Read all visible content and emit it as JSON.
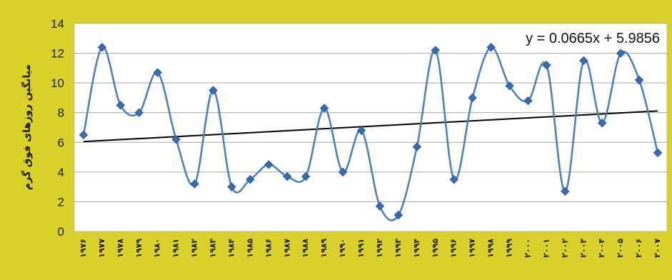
{
  "chart_data": {
    "type": "line",
    "ylabel": "میانگین روزهای فوق گرم",
    "ylim": [
      0,
      14
    ],
    "yticks": [
      0,
      2,
      4,
      6,
      8,
      10,
      12,
      14
    ],
    "grid": true,
    "categories": [
      "۱۹۷۶",
      "۱۹۷۷",
      "۱۹۷۸",
      "۱۹۷۹",
      "۱۹۸۰",
      "۱۹۸۱",
      "۱۹۸۲",
      "۱۹۸۳",
      "۱۹۸۴",
      "۱۹۸۵",
      "۱۹۸۶",
      "۱۹۸۷",
      "۱۹۸۸",
      "۱۹۸۹",
      "۱۹۹۰",
      "۱۹۹۱",
      "۱۹۹۲",
      "۱۹۹۳",
      "۱۹۹۴",
      "۱۹۹۵",
      "۱۹۹۶",
      "۱۹۹۷",
      "۱۹۹۸",
      "۱۹۹۹",
      "۲۰۰۰",
      "۲۰۰۱",
      "۲۰۰۲",
      "۲۰۰۳",
      "۲۰۰۴",
      "۲۰۰۵",
      "۲۰۰۶",
      "۲۰۰۷"
    ],
    "series": [
      {
        "values": [
          6.5,
          12.4,
          8.5,
          8.0,
          10.7,
          6.2,
          3.2,
          9.5,
          3.0,
          3.5,
          4.5,
          3.7,
          3.7,
          8.3,
          4.0,
          6.8,
          1.7,
          1.1,
          5.7,
          12.2,
          3.5,
          9.0,
          12.4,
          9.8,
          8.8,
          11.2,
          2.7,
          11.5,
          7.3,
          12.0,
          10.2,
          5.3
        ]
      }
    ],
    "trendline": {
      "slope": 0.0665,
      "intercept": 5.9856,
      "equation": "y = 0.0665x + 5.9856"
    },
    "colors": {
      "line": "#4f81bd",
      "marker": "#3b6ab0",
      "trend": "#000000",
      "background": "#d9d02a",
      "plot": "#ffffff"
    }
  }
}
